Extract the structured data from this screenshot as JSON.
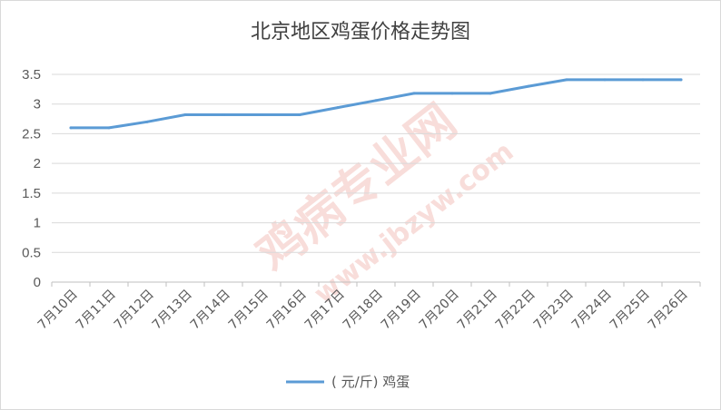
{
  "chart_data": {
    "type": "line",
    "title": "北京地区鸡蛋价格走势图",
    "categories": [
      "7月10日",
      "7月11日",
      "7月12日",
      "7月13日",
      "7月14日",
      "7月15日",
      "7月16日",
      "7月17日",
      "7月18日",
      "7月19日",
      "7月20日",
      "7月21日",
      "7月22日",
      "7月23日",
      "7月24日",
      "7月25日",
      "7月26日"
    ],
    "series": [
      {
        "name": "( 元/斤)  鸡蛋",
        "color": "#5b9bd5",
        "values": [
          2.6,
          2.6,
          2.7,
          2.82,
          2.82,
          2.82,
          2.82,
          2.94,
          3.06,
          3.18,
          3.18,
          3.18,
          3.3,
          3.41,
          3.41,
          3.41,
          3.41
        ]
      }
    ],
    "ylim": [
      0,
      3.5
    ],
    "yticks": [
      "0",
      "0.5",
      "1",
      "1.5",
      "2",
      "2.5",
      "3",
      "3.5"
    ],
    "grid": true,
    "legend_position": "bottom"
  },
  "watermark": {
    "text_main": "鸡病专业网",
    "text_url": "www.jbzyw.com"
  }
}
